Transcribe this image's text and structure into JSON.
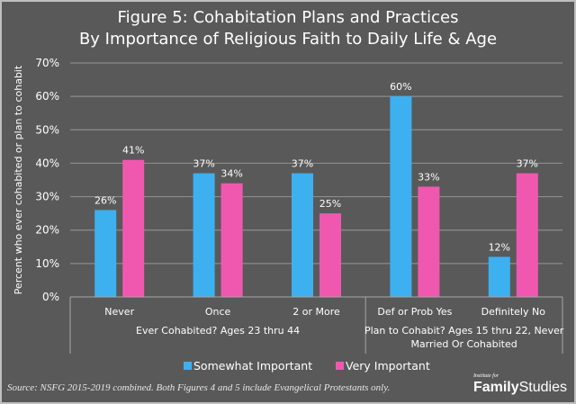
{
  "title_line1": "Figure 5: Cohabitation Plans and Practices",
  "title_line2": "By Importance of Religious Faith to Daily Life & Age",
  "source": "Source: NSFG 2015-2019 combined. Both Figures 4 and 5 include Evangelical Protestants only.",
  "logo": {
    "top": "Institute for",
    "bold": "Family",
    "regular": "Studies"
  },
  "chart_data": {
    "type": "bar",
    "title": "Figure 5: Cohabitation Plans and Practices By Importance of Religious Faith to Daily Life & Age",
    "ylabel": "Percent  who ever  cohabited or  plan to cohabit",
    "xlabel": "",
    "ylim": [
      0,
      70
    ],
    "yticks": [
      0,
      10,
      20,
      30,
      40,
      50,
      60,
      70
    ],
    "ytick_labels": [
      "0%",
      "10%",
      "20%",
      "30%",
      "40%",
      "50%",
      "60%",
      "70%"
    ],
    "grid": true,
    "legend_position": "bottom",
    "categories": [
      "Never",
      "Once",
      "2 or More",
      "Def or Prob Yes",
      "Definitely No"
    ],
    "groups": [
      {
        "label": "Ever Cohabited? Ages 23 thru 44",
        "categories": [
          "Never",
          "Once",
          "2 or More"
        ]
      },
      {
        "label": "Plan to Cohabit? Ages 15 thru 22, Never Married Or Cohabited",
        "label_lines": [
          "Plan to Cohabit? Ages 15 thru 22, Never",
          "Married Or Cohabited"
        ],
        "categories": [
          "Def or Prob Yes",
          "Definitely No"
        ]
      }
    ],
    "series": [
      {
        "name": "Somewhat Important",
        "color": "#3DB0F0",
        "values": [
          26,
          37,
          37,
          60,
          12
        ],
        "labels": [
          "26%",
          "37%",
          "37%",
          "60%",
          "12%"
        ]
      },
      {
        "name": "Very Important",
        "color": "#F058B0",
        "values": [
          41,
          34,
          25,
          33,
          37
        ],
        "labels": [
          "41%",
          "34%",
          "25%",
          "33%",
          "37%"
        ]
      }
    ]
  },
  "colors": {
    "background": "#595959",
    "gridline": "#8c8c8c",
    "text": "#ffffff"
  }
}
